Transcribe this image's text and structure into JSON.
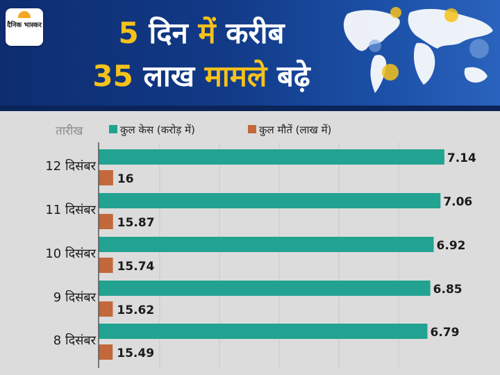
{
  "header": {
    "logo_text": "दैनिक भास्कर",
    "headline_line1": "5 दिन में करीब",
    "headline_line2": "35 लाख मामले बढ़े"
  },
  "colors": {
    "cases": "#22a391",
    "deaths": "#c2683a",
    "banner": "#123a87",
    "headline_accent": "#f6c21a"
  },
  "chart_data": {
    "type": "bar",
    "orientation": "horizontal",
    "categories": [
      "12 दिसंबर",
      "11 दिसंबर",
      "10 दिसंबर",
      "9 दिसंबर",
      "8 दिसंबर"
    ],
    "category_axis_title": "तारीख",
    "series": [
      {
        "name": "कुल केस (करोड़ में)",
        "values": [
          7.14,
          7.06,
          6.92,
          6.85,
          6.79
        ],
        "labels": [
          "7.14",
          "7.06",
          "6.92",
          "6.85",
          "6.79"
        ]
      },
      {
        "name": "कुल मौतें (लाख में)",
        "values": [
          16,
          15.87,
          15.74,
          15.62,
          15.49
        ],
        "labels": [
          "16",
          "15.87",
          "15.74",
          "15.62",
          "15.49"
        ]
      }
    ],
    "legend_position": "top",
    "grid": true
  }
}
